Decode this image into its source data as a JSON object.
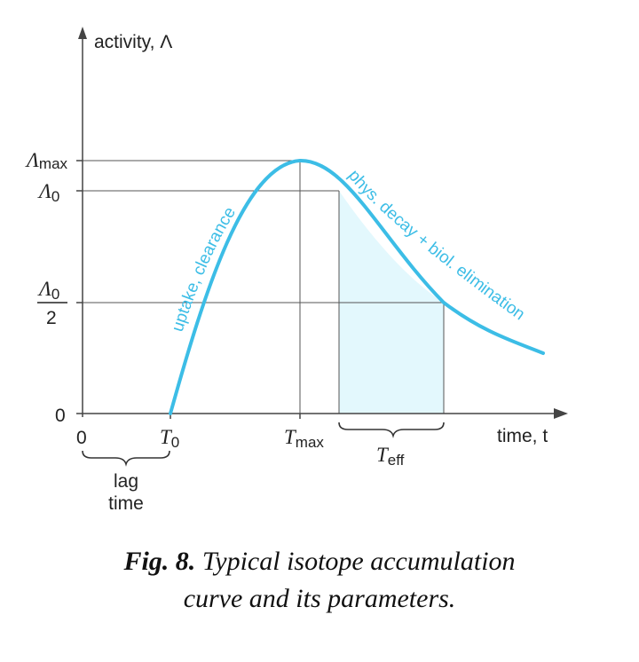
{
  "figure": {
    "y_axis_label": "activity, Λ",
    "x_axis_label": "time, t",
    "y_ticks": {
      "max": {
        "symbol": "Λ",
        "sub": "max"
      },
      "zero_level": {
        "symbol": "Λ",
        "sub": "0"
      },
      "half_num": {
        "symbol": "Λ",
        "sub": "0"
      },
      "half_den": "2",
      "zero": "0"
    },
    "x_ticks": {
      "origin": "0",
      "t0": {
        "symbol": "T",
        "sub": "0"
      },
      "tmax": {
        "symbol": "T",
        "sub": "max"
      },
      "teff": {
        "symbol": "T",
        "sub": "eff"
      }
    },
    "lag_label_line1": "lag",
    "lag_label_line2": "time",
    "rise_label": "uptake, clearance",
    "decay_label": "phys. decay + biol. elimination",
    "curve_color": "#3cbde6",
    "shade_color": "#e3f8fd"
  },
  "caption": {
    "label": "Fig. 8.",
    "text_line1": "Typical isotope accumulation",
    "text_line2": "curve and its parameters."
  }
}
